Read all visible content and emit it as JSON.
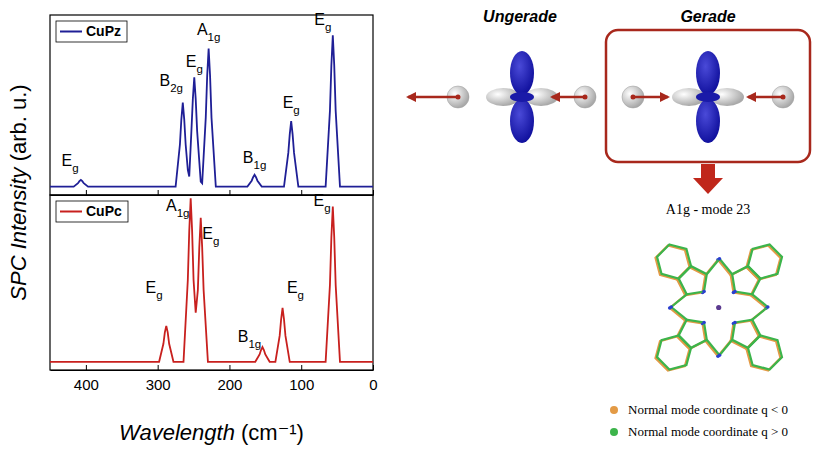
{
  "chart_data": {
    "type": "line",
    "x_label": "Wavelength (cm⁻¹)",
    "y_label": "SPC Intensity (arb. u.)",
    "xlim": [
      450,
      0
    ],
    "xticks": [
      400,
      300,
      200,
      100,
      0
    ],
    "ylim": [
      -0.05,
      1.02
    ],
    "tick_labels": "x",
    "legend": "upper left",
    "series": [
      {
        "name": "CuPz",
        "color": "#1f1f96",
        "x": [
          0,
          46,
          52,
          54,
          56,
          58,
          60,
          66,
          104,
          110,
          112,
          114,
          116,
          118,
          124,
          155,
          161,
          163,
          165,
          167,
          169,
          175,
          219,
          225,
          227,
          229,
          231,
          233,
          238,
          240,
          245,
          247,
          249,
          251,
          253,
          256,
          258,
          261,
          263,
          265,
          267,
          269,
          275,
          397,
          403,
          405,
          407,
          409,
          411,
          417,
          450
        ],
        "values": [
          0,
          0,
          0.45,
          0.72,
          0.9,
          0.72,
          0.45,
          0,
          0,
          0.2,
          0.31,
          0.39,
          0.31,
          0.2,
          0,
          0,
          0.035,
          0.056,
          0.07,
          0.056,
          0.035,
          0,
          0,
          0.41,
          0.66,
          0.82,
          0.66,
          0.41,
          0.02,
          0.03,
          0.33,
          0.52,
          0.65,
          0.52,
          0.33,
          0.06,
          0.1,
          0.25,
          0.4,
          0.5,
          0.4,
          0.25,
          0,
          0,
          0.02,
          0.032,
          0.04,
          0.032,
          0.02,
          0,
          0
        ],
        "annotations": [
          {
            "text": "Eg",
            "x": 422,
            "y": 0.12
          },
          {
            "text": "B2g",
            "x": 281,
            "y": 0.6
          },
          {
            "text": "Eg",
            "x": 249,
            "y": 0.71
          },
          {
            "text": "A1g",
            "x": 229,
            "y": 0.9
          },
          {
            "text": "B1g",
            "x": 165,
            "y": 0.14
          },
          {
            "text": "Eg",
            "x": 114,
            "y": 0.47
          },
          {
            "text": "Eg",
            "x": 70,
            "y": 0.96
          }
        ]
      },
      {
        "name": "CuPc",
        "color": "#c8201e",
        "x": [
          0,
          46,
          52,
          54,
          56,
          58,
          60,
          66,
          116,
          122,
          124,
          126,
          128,
          130,
          136,
          144,
          150,
          152,
          154,
          156,
          158,
          164,
          230,
          236,
          238,
          240,
          242,
          244,
          247,
          250,
          252,
          254,
          256,
          258,
          264,
          278,
          284,
          286,
          288,
          290,
          292,
          298,
          450
        ],
        "values": [
          0,
          0,
          0.47,
          0.76,
          0.95,
          0.76,
          0.47,
          0,
          0,
          0.16,
          0.26,
          0.33,
          0.26,
          0.16,
          0,
          0,
          0.045,
          0.072,
          0.09,
          0.072,
          0.045,
          0,
          0,
          0.44,
          0.7,
          0.88,
          0.7,
          0.44,
          0.3,
          0.5,
          0.8,
          1.0,
          0.8,
          0.5,
          0,
          0,
          0.11,
          0.18,
          0.22,
          0.18,
          0.11,
          0,
          0
        ],
        "annotations": [
          {
            "text": "A1g",
            "x": 272,
            "y": 0.92
          },
          {
            "text": "Eg",
            "x": 226,
            "y": 0.75
          },
          {
            "text": "Eg",
            "x": 305,
            "y": 0.42
          },
          {
            "text": "B1g",
            "x": 172,
            "y": 0.12
          },
          {
            "text": "Eg",
            "x": 108,
            "y": 0.42
          },
          {
            "text": "Eg",
            "x": 71,
            "y": 0.95
          }
        ]
      }
    ]
  },
  "diagram": {
    "ungerade_label": "Ungerade",
    "gerade_label": "Gerade",
    "mode_label": "A1g - mode 23",
    "legend": [
      {
        "text": "Normal mode coordinate q < 0",
        "color": "#e39a45"
      },
      {
        "text": "Normal mode coordinate q > 0",
        "color": "#3cb44b"
      }
    ]
  }
}
